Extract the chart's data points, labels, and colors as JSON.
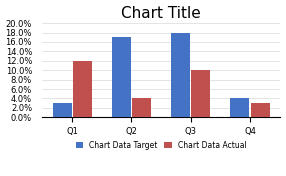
{
  "title": "Chart Title",
  "categories": [
    "Q1",
    "Q2",
    "Q3",
    "Q4"
  ],
  "target_values": [
    0.03,
    0.17,
    0.18,
    0.04
  ],
  "actual_values": [
    0.12,
    0.04,
    0.1,
    0.03
  ],
  "target_color": "#4472C4",
  "actual_color": "#C0504D",
  "ylim": [
    0.0,
    0.2
  ],
  "yticks": [
    0.0,
    0.02,
    0.04,
    0.06,
    0.08,
    0.1,
    0.12,
    0.14,
    0.16,
    0.18,
    0.2
  ],
  "legend_labels": [
    "Chart Data Target",
    "Chart Data Actual"
  ],
  "background_color": "#FFFFFF",
  "grid_color": "#D9D9D9",
  "title_fontsize": 11,
  "tick_fontsize": 6,
  "legend_fontsize": 5.5,
  "bar_width": 0.32,
  "bar_gap": 0.02
}
